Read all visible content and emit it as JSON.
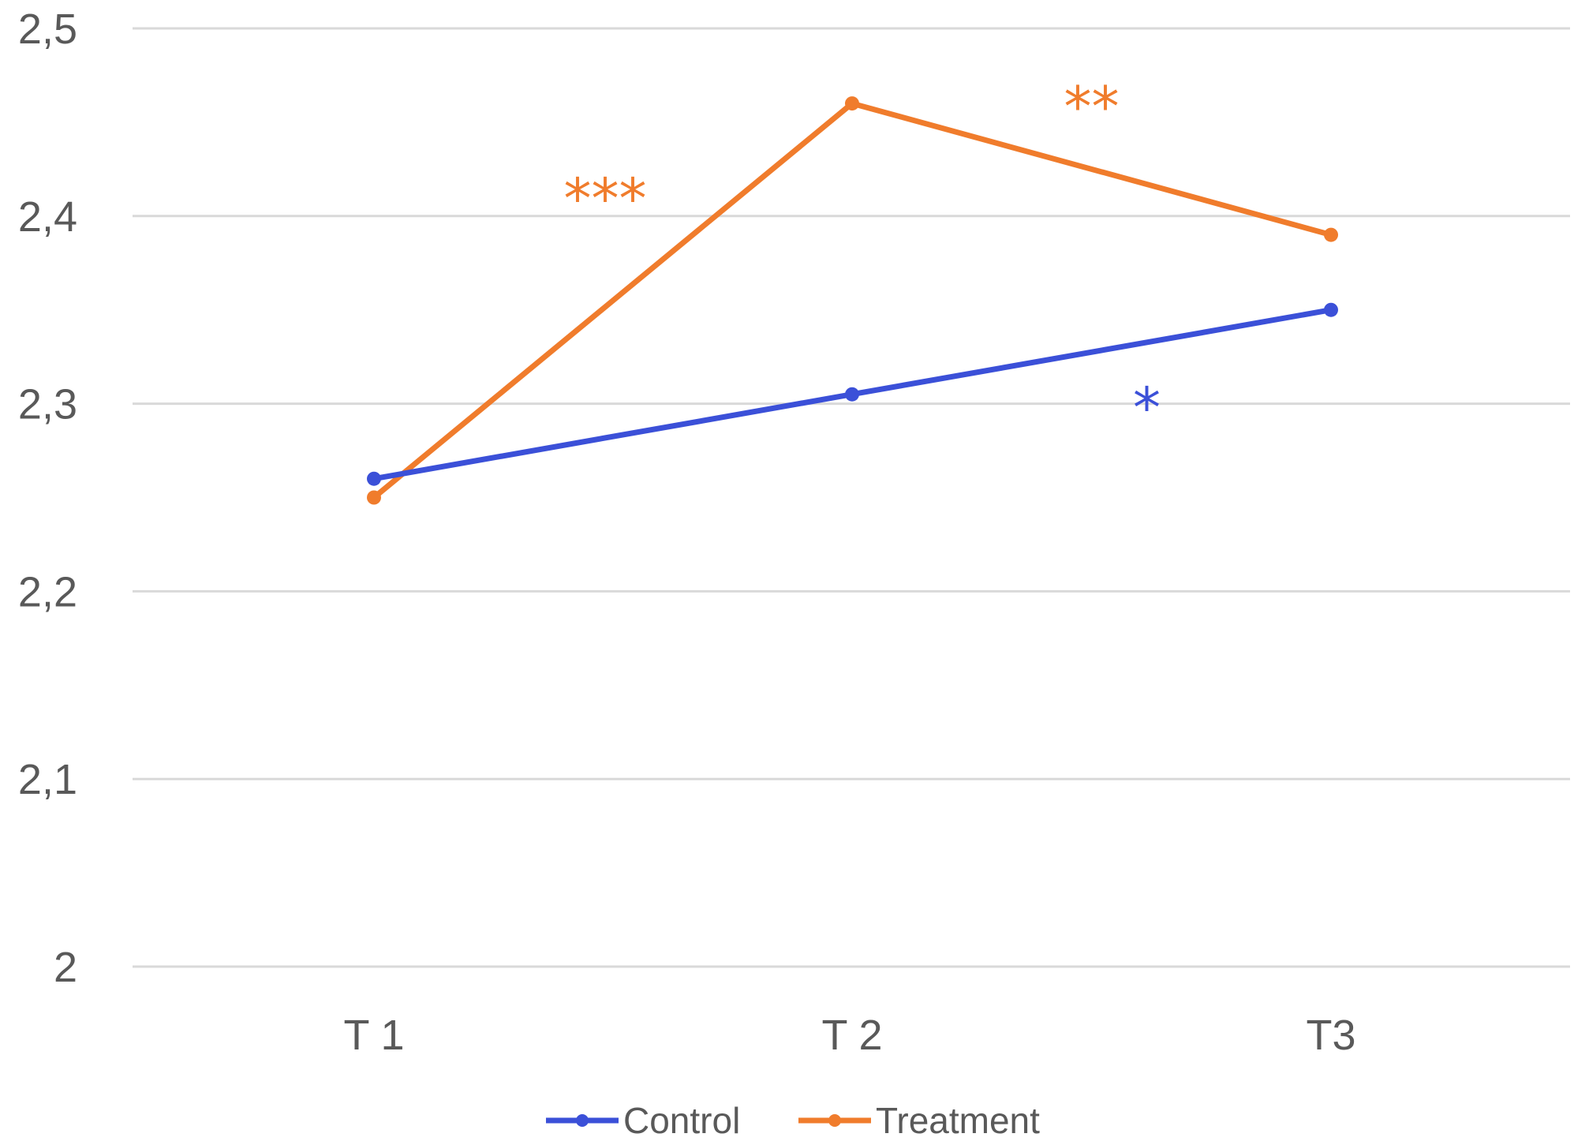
{
  "chart_data": {
    "type": "line",
    "title": "",
    "xlabel": "",
    "ylabel": "",
    "categories": [
      "T 1",
      "T 2",
      "T3"
    ],
    "ylim": [
      2,
      2.5
    ],
    "yticks": [
      "2",
      "2,1",
      "2,2",
      "2,3",
      "2,4",
      "2,5"
    ],
    "ytick_values": [
      2,
      2.1,
      2.2,
      2.3,
      2.4,
      2.5
    ],
    "grid": true,
    "legend_position": "bottom",
    "series": [
      {
        "name": "Control",
        "color": "#3b50d8",
        "values": [
          2.26,
          2.305,
          2.35
        ]
      },
      {
        "name": "Treatment",
        "color": "#f07c2c",
        "values": [
          2.25,
          2.46,
          2.39
        ]
      }
    ],
    "annotations": [
      {
        "text": "***",
        "series": "Treatment",
        "segment": [
          0,
          1
        ],
        "color": "#f07c2c"
      },
      {
        "text": "**",
        "series": "Treatment",
        "segment": [
          1,
          2
        ],
        "color": "#f07c2c"
      },
      {
        "text": "*",
        "series": "Control",
        "segment": [
          1,
          2
        ],
        "color": "#3b50d8"
      }
    ]
  }
}
